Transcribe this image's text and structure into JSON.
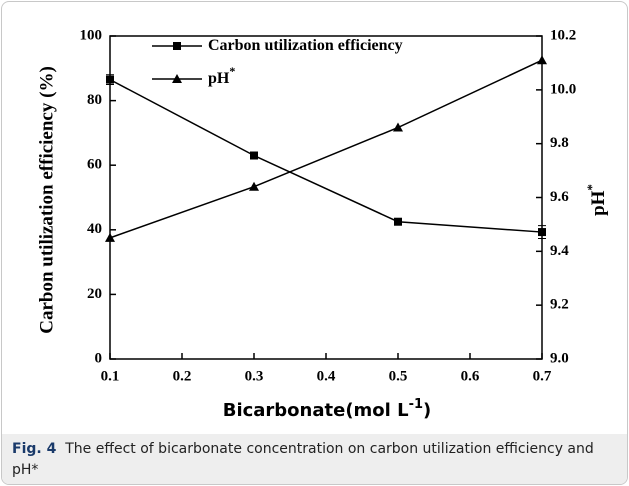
{
  "chart_data": {
    "type": "line",
    "x": [
      0.1,
      0.3,
      0.5,
      0.7
    ],
    "xlabel": [
      "Bicarbonate(mol L",
      "-1",
      ")"
    ],
    "ylabel": "Carbon utilization efficiency (%)",
    "y2label": [
      "pH",
      "*"
    ],
    "xlim": [
      0.1,
      0.7
    ],
    "xticks": [
      0.1,
      0.2,
      0.3,
      0.4,
      0.5,
      0.6,
      0.7
    ],
    "ylim": [
      0,
      100
    ],
    "yticks": [
      0,
      20,
      40,
      60,
      80,
      100
    ],
    "y2lim": [
      9.0,
      10.2
    ],
    "y2ticks": [
      {
        "value": 9.0,
        "label": "9.0"
      },
      9.2,
      9.4,
      9.6,
      9.8,
      {
        "value": 10.0,
        "label": "10.0"
      },
      10.2
    ],
    "legend": "top",
    "series": [
      {
        "name": "Carbon utilization efficiency",
        "color": "#000000",
        "marker": "square",
        "values": [
          86.5,
          63,
          42.5,
          39.3
        ],
        "errors": [
          1.5,
          0.6,
          0.6,
          2.0
        ]
      },
      {
        "name": "pH",
        "name_sup": "*",
        "color": "#000000",
        "marker": "triangle",
        "axis": "y2",
        "values": [
          9.45,
          9.64,
          9.86,
          10.11
        ]
      }
    ],
    "caption": {
      "label": "Fig. 4",
      "text": "The effect of bicarbonate concentration on carbon utilization efficiency and pH*"
    }
  }
}
